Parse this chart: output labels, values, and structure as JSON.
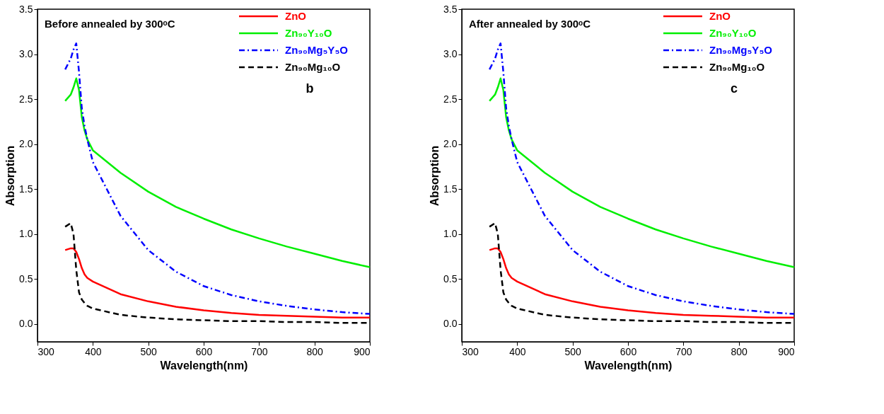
{
  "chart_data": [
    {
      "type": "line",
      "title": "Before annealed by 300ᵒC",
      "xlabel": "Wavelength(nm)",
      "ylabel": "Absorption",
      "annotations": [
        "b"
      ],
      "xlim": [
        300,
        900
      ],
      "xticks": [
        300,
        400,
        500,
        600,
        700,
        800,
        900
      ],
      "ylim": [
        -0.2,
        3.5
      ],
      "yticks": [
        {
          "value": 0,
          "label": "0.0"
        },
        0.5,
        {
          "value": 1,
          "label": "1.0"
        },
        1.5,
        {
          "value": 2,
          "label": "2.0"
        },
        2.5,
        {
          "value": 3,
          "label": "3.0"
        },
        3.5
      ],
      "grid": false,
      "legend": "top right",
      "x": [
        350,
        360,
        365,
        370,
        375,
        380,
        385,
        390,
        400,
        450,
        500,
        550,
        600,
        650,
        700,
        750,
        800,
        850,
        900
      ],
      "series": [
        {
          "name": "ZnO",
          "color": "#ff0000",
          "line_style": "solid",
          "values": [
            0.82,
            0.84,
            0.84,
            0.8,
            0.72,
            0.62,
            0.55,
            0.51,
            0.47,
            0.33,
            0.25,
            0.19,
            0.15,
            0.12,
            0.1,
            0.09,
            0.08,
            0.07,
            0.07
          ]
        },
        {
          "name": "Zn₉₀Y₁₀O",
          "color": "#00ee00",
          "line_style": "solid",
          "values": [
            2.48,
            2.55,
            2.63,
            2.73,
            2.6,
            2.3,
            2.15,
            2.05,
            1.93,
            1.68,
            1.47,
            1.3,
            1.17,
            1.05,
            0.95,
            0.86,
            0.78,
            0.7,
            0.63
          ]
        },
        {
          "name": "Zn₉₀Mg₅Y₅O",
          "color": "#0000ff",
          "line_style": "dashdot",
          "values": [
            2.83,
            2.95,
            3.05,
            3.12,
            2.8,
            2.4,
            2.2,
            2.05,
            1.8,
            1.2,
            0.82,
            0.58,
            0.42,
            0.32,
            0.25,
            0.2,
            0.16,
            0.13,
            0.11
          ]
        },
        {
          "name": "Zn₉₀Mg₁₀O",
          "color": "#000000",
          "line_style": "dashed",
          "values": [
            1.08,
            1.12,
            1.0,
            0.6,
            0.35,
            0.27,
            0.23,
            0.2,
            0.17,
            0.1,
            0.07,
            0.05,
            0.04,
            0.03,
            0.03,
            0.02,
            0.02,
            0.01,
            0.01
          ]
        }
      ]
    },
    {
      "type": "line",
      "title": "After annealed by 300ᵒC",
      "xlabel": "Wavelength(nm)",
      "ylabel": "Absorption",
      "annotations": [
        "c"
      ],
      "xlim": [
        300,
        900
      ],
      "xticks": [
        300,
        400,
        500,
        600,
        700,
        800,
        900
      ],
      "ylim": [
        -0.2,
        3.5
      ],
      "yticks": [
        {
          "value": 0,
          "label": "0.0"
        },
        0.5,
        {
          "value": 1,
          "label": "1.0"
        },
        1.5,
        {
          "value": 2,
          "label": "2.0"
        },
        2.5,
        {
          "value": 3,
          "label": "3.0"
        },
        3.5
      ],
      "grid": false,
      "legend": "top right",
      "x": [
        350,
        360,
        365,
        370,
        375,
        380,
        385,
        390,
        400,
        450,
        500,
        550,
        600,
        650,
        700,
        750,
        800,
        850,
        900
      ],
      "series": [
        {
          "name": "ZnO",
          "color": "#ff0000",
          "line_style": "solid",
          "values": [
            0.82,
            0.84,
            0.84,
            0.8,
            0.72,
            0.62,
            0.55,
            0.51,
            0.47,
            0.33,
            0.25,
            0.19,
            0.15,
            0.12,
            0.1,
            0.09,
            0.08,
            0.07,
            0.07
          ]
        },
        {
          "name": "Zn₉₀Y₁₀O",
          "color": "#00ee00",
          "line_style": "solid",
          "values": [
            2.48,
            2.55,
            2.63,
            2.73,
            2.6,
            2.3,
            2.15,
            2.05,
            1.93,
            1.68,
            1.47,
            1.3,
            1.17,
            1.05,
            0.95,
            0.86,
            0.78,
            0.7,
            0.63
          ]
        },
        {
          "name": "Zn₉₀Mg₅Y₅O",
          "color": "#0000ff",
          "line_style": "dashdot",
          "values": [
            2.83,
            2.95,
            3.05,
            3.12,
            2.8,
            2.4,
            2.2,
            2.05,
            1.8,
            1.2,
            0.82,
            0.58,
            0.42,
            0.32,
            0.25,
            0.2,
            0.16,
            0.13,
            0.11
          ]
        },
        {
          "name": "Zn₉₀Mg₁₀O",
          "color": "#000000",
          "line_style": "dashed",
          "values": [
            1.08,
            1.12,
            1.0,
            0.6,
            0.35,
            0.27,
            0.23,
            0.2,
            0.17,
            0.1,
            0.07,
            0.05,
            0.04,
            0.03,
            0.03,
            0.02,
            0.02,
            0.01,
            0.01
          ]
        }
      ]
    }
  ]
}
